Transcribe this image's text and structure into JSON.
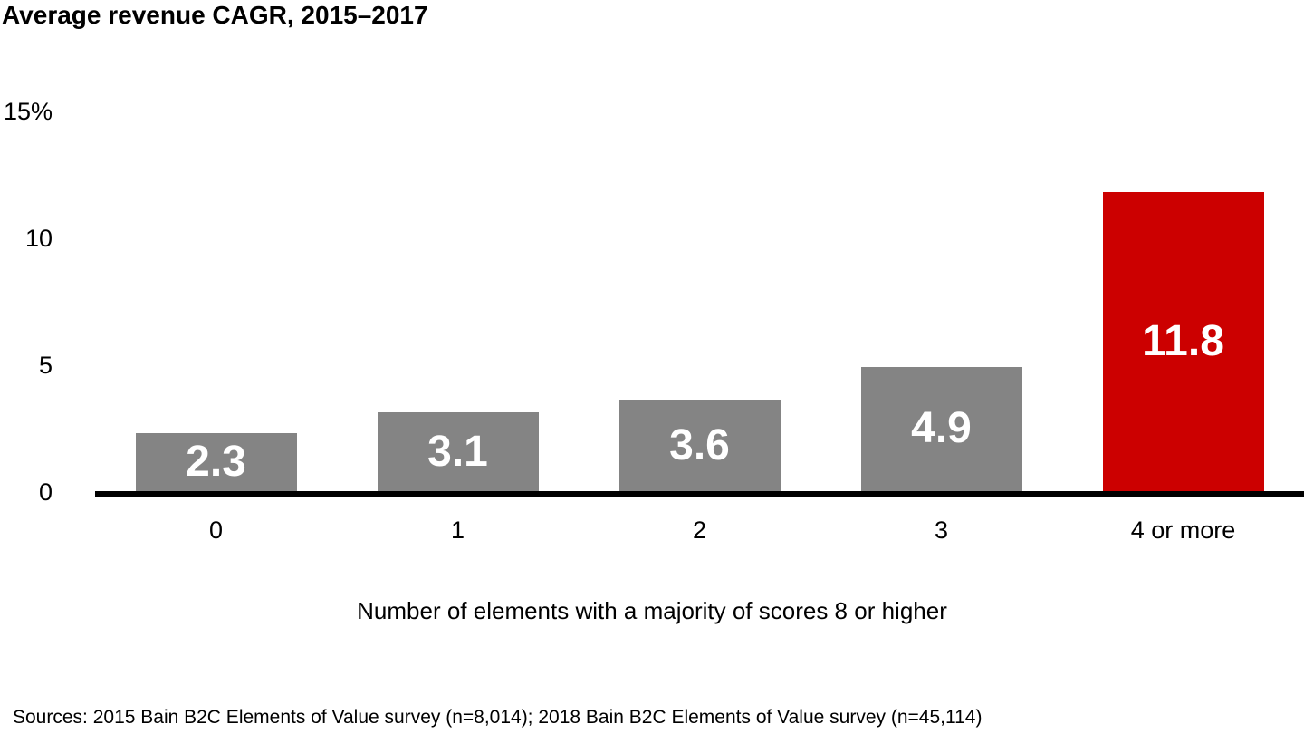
{
  "title": "Average revenue CAGR, 2015–2017",
  "chart_data": {
    "type": "bar",
    "title": "Average revenue CAGR, 2015–2017",
    "categories": [
      "0",
      "1",
      "2",
      "3",
      "4 or more"
    ],
    "values": [
      2.3,
      3.1,
      3.6,
      4.9,
      11.8
    ],
    "value_labels": [
      "2.3",
      "3.1",
      "3.6",
      "4.9",
      "11.8"
    ],
    "xlabel": "Number of elements with a majority of scores 8 or higher",
    "ylabel": "",
    "ylim": [
      0,
      15
    ],
    "yticks": [
      {
        "value": 0,
        "label": "0"
      },
      {
        "value": 5,
        "label": "5"
      },
      {
        "value": 10,
        "label": "10"
      },
      {
        "value": 15,
        "label": "15%"
      }
    ],
    "grid": false,
    "legend": false,
    "bar_colors": [
      "#848484",
      "#848484",
      "#848484",
      "#848484",
      "#CC0000"
    ],
    "default_bar_color": "#848484",
    "highlight_bar_color": "#CC0000",
    "bar_label_color": "#FFFFFF",
    "axis_line_color": "#000000"
  },
  "footer": {
    "sources": "Sources: 2015 Bain B2C Elements of Value survey (n=8,014); 2018 Bain B2C Elements of Value survey (n=45,114)"
  }
}
